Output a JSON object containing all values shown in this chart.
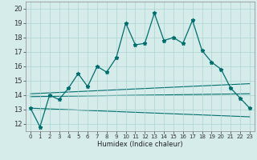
{
  "title": "",
  "xlabel": "Humidex (Indice chaleur)",
  "background_color": "#d5ecea",
  "grid_color": "#aed4d0",
  "line_color": "#006e6e",
  "xlim": [
    -0.5,
    23.5
  ],
  "ylim": [
    11.5,
    20.5
  ],
  "yticks": [
    12,
    13,
    14,
    15,
    16,
    17,
    18,
    19,
    20
  ],
  "xticks": [
    0,
    1,
    2,
    3,
    4,
    5,
    6,
    7,
    8,
    9,
    10,
    11,
    12,
    13,
    14,
    15,
    16,
    17,
    18,
    19,
    20,
    21,
    22,
    23
  ],
  "main_x": [
    0,
    1,
    2,
    3,
    4,
    5,
    6,
    7,
    8,
    9,
    10,
    11,
    12,
    13,
    14,
    15,
    16,
    17,
    18,
    19,
    20,
    21,
    22,
    23
  ],
  "main_y": [
    13.1,
    11.8,
    14.0,
    13.7,
    14.5,
    15.5,
    14.6,
    16.0,
    15.6,
    16.6,
    19.0,
    17.5,
    17.6,
    19.7,
    17.8,
    18.0,
    17.6,
    19.2,
    17.1,
    16.3,
    15.8,
    14.5,
    13.8,
    13.1
  ],
  "trend1_x": [
    0,
    23
  ],
  "trend1_y": [
    13.1,
    12.5
  ],
  "trend2_x": [
    0,
    23
  ],
  "trend2_y": [
    13.9,
    14.1
  ],
  "trend3_x": [
    0,
    23
  ],
  "trend3_y": [
    14.1,
    14.8
  ]
}
